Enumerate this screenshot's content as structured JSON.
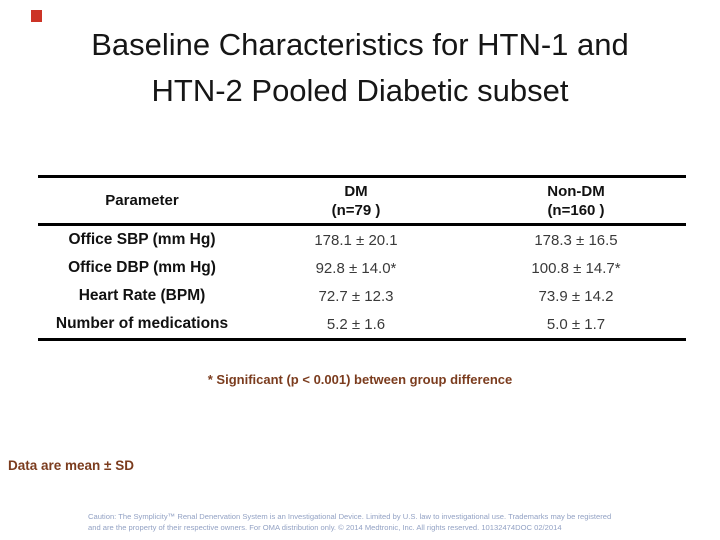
{
  "slide": {
    "title_line1": "Baseline Characteristics for HTN-1 and",
    "title_line2": "HTN-2 Pooled Diabetic subset"
  },
  "table": {
    "header": {
      "parameter": "Parameter",
      "dm_line1": "DM",
      "dm_line2": "(n=79 )",
      "nondm_line1": "Non-DM",
      "nondm_line2": "(n=160 )"
    },
    "rows": [
      {
        "parameter": "Office SBP (mm Hg)",
        "dm": "178.1 ± 20.1",
        "non_dm": "178.3 ± 16.5"
      },
      {
        "parameter": "Office DBP (mm Hg)",
        "dm": "92.8 ± 14.0*",
        "non_dm": "100.8 ± 14.7*"
      },
      {
        "parameter": "Heart Rate (BPM)",
        "dm": "72.7 ± 12.3",
        "non_dm": "73.9 ± 14.2"
      },
      {
        "parameter": "Number of medications",
        "dm": "5.2 ± 1.6",
        "non_dm": "5.0 ± 1.7"
      }
    ]
  },
  "footnotes": {
    "significance": "* Significant (p < 0.001) between group difference",
    "mean_sd": "Data are mean ± SD"
  },
  "caution": {
    "line1": "Caution: The Symplicity™ Renal Denervation System is an Investigational Device. Limited by U.S. law to investigational use. Trademarks may be registered",
    "line2": "and are the property of their respective owners. For OMA distribution only. © 2014 Medtronic, Inc. All rights reserved. 10132474DOC 02/2014"
  },
  "colors": {
    "background": "#ffffff",
    "title_text": "#161616",
    "table_border": "#000000",
    "table_label_text": "#111111",
    "table_value_text": "#3a3a3a",
    "footnote_text": "#7b3c1e",
    "caution_text": "#93a2c4",
    "corner_mark": "#cc3426"
  }
}
